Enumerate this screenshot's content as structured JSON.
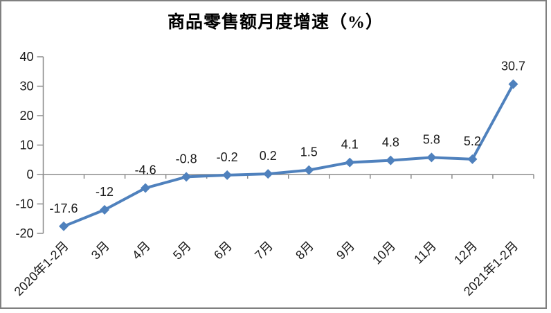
{
  "title": "商品零售额月度增速（%）",
  "chart_data": {
    "type": "line",
    "title": "商品零售额月度增速（%）",
    "xlabel": "",
    "ylabel": "",
    "legend": "none",
    "grid": false,
    "categories": [
      "2020年1-2月",
      "3月",
      "4月",
      "5月",
      "6月",
      "7月",
      "8月",
      "9月",
      "10月",
      "11月",
      "12月",
      "2021年1-2月"
    ],
    "values": [
      -17.6,
      -12,
      -4.6,
      -0.8,
      -0.2,
      0.2,
      1.5,
      4.1,
      4.8,
      5.8,
      5.2,
      30.7
    ],
    "point_labels": [
      "-17.6",
      "-12",
      "-4.6",
      "-0.8",
      "-0.2",
      "0.2",
      "1.5",
      "4.1",
      "4.8",
      "5.8",
      "5.2",
      "30.7"
    ],
    "y_ticks": [
      40,
      30,
      20,
      10,
      0,
      -10,
      -20
    ],
    "ylim": [
      -20,
      40
    ],
    "marker": "diamond",
    "label_position": "above",
    "series_color": "#4f81bd",
    "axis_color": "#8c8c8c",
    "label_color": "#1a1a1a",
    "frame_color": "#808080",
    "background_color": "#ffffff"
  }
}
